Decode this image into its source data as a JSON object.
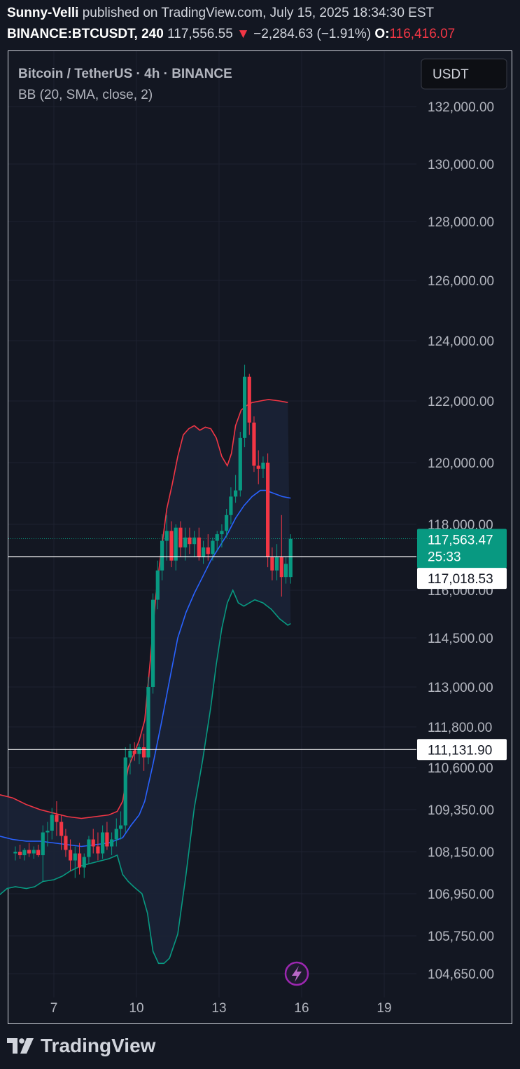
{
  "header": {
    "line1_author": "Sunny-Velli",
    "line1_rest": "published on TradingView.com, July 15, 2025 18:34:30 EST",
    "symbol": "BINANCE:BTCUSDT, 240",
    "last": "117,556.55",
    "arrow": "▼",
    "change": "−2,284.63 (−1.91%)",
    "o_label": "O:",
    "o_value": "116,416.07"
  },
  "legend": {
    "title": "Bitcoin / TetherUS · 4h · BINANCE",
    "indicator": "BB (20, SMA, close, 2)"
  },
  "currency_button": "USDT",
  "price_badge": {
    "price": "117,563.47",
    "countdown": "25:33"
  },
  "line_labels": {
    "upper": "117,018.53",
    "lower": "111,131.90"
  },
  "brand": "TradingView",
  "colors": {
    "background": "#131722",
    "up": "#089981",
    "down": "#f23645",
    "bb_upper": "#f23645",
    "bb_basis": "#2962ff",
    "bb_lower": "#089981",
    "bb_fill": "#1b2236",
    "badge": "#089981"
  },
  "chart_data": {
    "type": "candlestick",
    "title": "Bitcoin / TetherUS · 4h · BINANCE",
    "indicator": "BB (20, SMA, close, 2)",
    "currency": "USDT",
    "y_ticks": [
      "132,000.00",
      "130,000.00",
      "128,000.00",
      "126,000.00",
      "124,000.00",
      "122,000.00",
      "120,000.00",
      "118,000.00",
      "116,000.00",
      "114,500.00",
      "113,000.00",
      "111,800.00",
      "110,600.00",
      "109,350.00",
      "108,150.00",
      "106,950.00",
      "105,750.00",
      "104,650.00"
    ],
    "y_tick_values": [
      132000,
      130000,
      128000,
      126000,
      124000,
      122000,
      120000,
      118000,
      116000,
      114500,
      113000,
      111800,
      110600,
      109350,
      108150,
      106950,
      105750,
      104650
    ],
    "x_ticks": [
      {
        "label": "7",
        "day": 7
      },
      {
        "label": "10",
        "day": 10
      },
      {
        "label": "13",
        "day": 13
      },
      {
        "label": "16",
        "day": 16
      },
      {
        "label": "19",
        "day": 19
      }
    ],
    "candles": [
      {
        "t": 5.6,
        "o": 108100,
        "h": 108300,
        "l": 107900,
        "c": 108150
      },
      {
        "t": 5.77,
        "o": 108150,
        "h": 108350,
        "l": 107950,
        "c": 108050
      },
      {
        "t": 5.93,
        "o": 108050,
        "h": 108250,
        "l": 107900,
        "c": 108200
      },
      {
        "t": 6.1,
        "o": 108200,
        "h": 108400,
        "l": 108000,
        "c": 108100
      },
      {
        "t": 6.27,
        "o": 108100,
        "h": 108300,
        "l": 107950,
        "c": 108200
      },
      {
        "t": 6.43,
        "o": 108200,
        "h": 108350,
        "l": 108000,
        "c": 108050
      },
      {
        "t": 6.6,
        "o": 108050,
        "h": 108900,
        "l": 107300,
        "c": 108700
      },
      {
        "t": 6.77,
        "o": 108700,
        "h": 109000,
        "l": 108300,
        "c": 108750
      },
      {
        "t": 6.93,
        "o": 108750,
        "h": 109400,
        "l": 108500,
        "c": 109200
      },
      {
        "t": 7.1,
        "o": 109200,
        "h": 109600,
        "l": 108600,
        "c": 109000
      },
      {
        "t": 7.27,
        "o": 109000,
        "h": 109200,
        "l": 108200,
        "c": 108600
      },
      {
        "t": 7.43,
        "o": 108600,
        "h": 108800,
        "l": 108000,
        "c": 108200
      },
      {
        "t": 7.6,
        "o": 108200,
        "h": 108500,
        "l": 107600,
        "c": 107900
      },
      {
        "t": 7.77,
        "o": 107900,
        "h": 108300,
        "l": 107400,
        "c": 108100
      },
      {
        "t": 7.93,
        "o": 108100,
        "h": 108400,
        "l": 107500,
        "c": 107700
      },
      {
        "t": 8.1,
        "o": 107700,
        "h": 108100,
        "l": 107400,
        "c": 108000
      },
      {
        "t": 8.27,
        "o": 108000,
        "h": 108600,
        "l": 107800,
        "c": 108500
      },
      {
        "t": 8.43,
        "o": 108500,
        "h": 108800,
        "l": 108100,
        "c": 108300
      },
      {
        "t": 8.6,
        "o": 108300,
        "h": 108700,
        "l": 107900,
        "c": 108100
      },
      {
        "t": 8.77,
        "o": 108100,
        "h": 108900,
        "l": 107950,
        "c": 108700
      },
      {
        "t": 8.93,
        "o": 108700,
        "h": 109000,
        "l": 108200,
        "c": 108300
      },
      {
        "t": 9.1,
        "o": 108300,
        "h": 108700,
        "l": 108050,
        "c": 108500
      },
      {
        "t": 9.27,
        "o": 108500,
        "h": 109100,
        "l": 108300,
        "c": 108800
      },
      {
        "t": 9.43,
        "o": 108800,
        "h": 109300,
        "l": 108500,
        "c": 108900
      },
      {
        "t": 9.6,
        "o": 108900,
        "h": 111200,
        "l": 108700,
        "c": 110900
      },
      {
        "t": 9.77,
        "o": 110900,
        "h": 111300,
        "l": 110400,
        "c": 111100
      },
      {
        "t": 9.93,
        "o": 111100,
        "h": 111350,
        "l": 110800,
        "c": 111000
      },
      {
        "t": 10.1,
        "o": 111000,
        "h": 111300,
        "l": 110700,
        "c": 111200
      },
      {
        "t": 10.27,
        "o": 111200,
        "h": 111600,
        "l": 110500,
        "c": 110900
      },
      {
        "t": 10.43,
        "o": 110900,
        "h": 113300,
        "l": 110700,
        "c": 113000
      },
      {
        "t": 10.6,
        "o": 113000,
        "h": 115900,
        "l": 112800,
        "c": 115700
      },
      {
        "t": 10.77,
        "o": 115700,
        "h": 116900,
        "l": 115400,
        "c": 116600
      },
      {
        "t": 10.93,
        "o": 116600,
        "h": 117700,
        "l": 116300,
        "c": 117500
      },
      {
        "t": 11.1,
        "o": 117500,
        "h": 118300,
        "l": 116900,
        "c": 117800
      },
      {
        "t": 11.27,
        "o": 117800,
        "h": 118100,
        "l": 116700,
        "c": 116900
      },
      {
        "t": 11.43,
        "o": 116900,
        "h": 118000,
        "l": 116600,
        "c": 117900
      },
      {
        "t": 11.6,
        "o": 117900,
        "h": 118100,
        "l": 117000,
        "c": 117300
      },
      {
        "t": 11.77,
        "o": 117300,
        "h": 117900,
        "l": 116900,
        "c": 117600
      },
      {
        "t": 11.93,
        "o": 117600,
        "h": 117900,
        "l": 117100,
        "c": 117400
      },
      {
        "t": 12.1,
        "o": 117400,
        "h": 117800,
        "l": 117000,
        "c": 117600
      },
      {
        "t": 12.27,
        "o": 117600,
        "h": 117900,
        "l": 116900,
        "c": 117000
      },
      {
        "t": 12.43,
        "o": 117000,
        "h": 117500,
        "l": 116800,
        "c": 117300
      },
      {
        "t": 12.6,
        "o": 117300,
        "h": 117700,
        "l": 116900,
        "c": 117100
      },
      {
        "t": 12.77,
        "o": 117100,
        "h": 117600,
        "l": 116900,
        "c": 117500
      },
      {
        "t": 12.93,
        "o": 117500,
        "h": 117800,
        "l": 117200,
        "c": 117700
      },
      {
        "t": 13.1,
        "o": 117700,
        "h": 118000,
        "l": 117300,
        "c": 117800
      },
      {
        "t": 13.27,
        "o": 117800,
        "h": 118500,
        "l": 117600,
        "c": 118300
      },
      {
        "t": 13.43,
        "o": 118300,
        "h": 119200,
        "l": 118000,
        "c": 118900
      },
      {
        "t": 13.6,
        "o": 118900,
        "h": 119600,
        "l": 118700,
        "c": 119100
      },
      {
        "t": 13.77,
        "o": 119100,
        "h": 121000,
        "l": 118900,
        "c": 120800
      },
      {
        "t": 13.93,
        "o": 120800,
        "h": 123200,
        "l": 120500,
        "c": 122800
      },
      {
        "t": 14.1,
        "o": 122800,
        "h": 122900,
        "l": 120900,
        "c": 121300
      },
      {
        "t": 14.27,
        "o": 121300,
        "h": 121500,
        "l": 119700,
        "c": 119900
      },
      {
        "t": 14.43,
        "o": 119900,
        "h": 120400,
        "l": 119300,
        "c": 119800
      },
      {
        "t": 14.6,
        "o": 119800,
        "h": 120200,
        "l": 119500,
        "c": 120000
      },
      {
        "t": 14.77,
        "o": 120000,
        "h": 120300,
        "l": 116700,
        "c": 117000
      },
      {
        "t": 14.93,
        "o": 117000,
        "h": 117300,
        "l": 116300,
        "c": 116600
      },
      {
        "t": 15.1,
        "o": 116600,
        "h": 117400,
        "l": 116300,
        "c": 117000
      },
      {
        "t": 15.27,
        "o": 117000,
        "h": 118300,
        "l": 115800,
        "c": 116400
      },
      {
        "t": 15.43,
        "o": 116400,
        "h": 117000,
        "l": 116200,
        "c": 116800
      },
      {
        "t": 15.6,
        "o": 116400,
        "h": 117700,
        "l": 116200,
        "c": 117560
      }
    ],
    "bb_upper": [
      [
        5.0,
        109800
      ],
      [
        5.5,
        109700
      ],
      [
        6.0,
        109500
      ],
      [
        6.5,
        109350
      ],
      [
        7.0,
        109250
      ],
      [
        7.5,
        109150
      ],
      [
        8.0,
        109100
      ],
      [
        8.5,
        109150
      ],
      [
        9.0,
        109200
      ],
      [
        9.3,
        109300
      ],
      [
        9.5,
        109600
      ],
      [
        9.7,
        110600
      ],
      [
        9.9,
        111000
      ],
      [
        10.1,
        111400
      ],
      [
        10.3,
        112000
      ],
      [
        10.5,
        113800
      ],
      [
        10.7,
        115800
      ],
      [
        10.9,
        117200
      ],
      [
        11.1,
        118500
      ],
      [
        11.3,
        119300
      ],
      [
        11.5,
        120200
      ],
      [
        11.7,
        120900
      ],
      [
        11.9,
        121100
      ],
      [
        12.1,
        121200
      ],
      [
        12.3,
        121050
      ],
      [
        12.5,
        121150
      ],
      [
        12.7,
        121100
      ],
      [
        12.9,
        120800
      ],
      [
        13.1,
        120200
      ],
      [
        13.3,
        119900
      ],
      [
        13.45,
        120300
      ],
      [
        13.6,
        121200
      ],
      [
        13.8,
        121700
      ],
      [
        14.0,
        121850
      ],
      [
        14.2,
        121950
      ],
      [
        14.5,
        122000
      ],
      [
        14.8,
        122050
      ],
      [
        15.2,
        122000
      ],
      [
        15.5,
        121950
      ]
    ],
    "bb_basis": [
      [
        5.0,
        108600
      ],
      [
        5.5,
        108500
      ],
      [
        6.0,
        108450
      ],
      [
        6.5,
        108450
      ],
      [
        7.0,
        108400
      ],
      [
        7.5,
        108350
      ],
      [
        8.0,
        108300
      ],
      [
        8.5,
        108350
      ],
      [
        9.0,
        108400
      ],
      [
        9.5,
        108550
      ],
      [
        9.8,
        108900
      ],
      [
        10.1,
        109200
      ],
      [
        10.3,
        109600
      ],
      [
        10.6,
        110700
      ],
      [
        10.9,
        111900
      ],
      [
        11.2,
        113200
      ],
      [
        11.5,
        114500
      ],
      [
        11.8,
        115300
      ],
      [
        12.1,
        115900
      ],
      [
        12.4,
        116400
      ],
      [
        12.7,
        116900
      ],
      [
        13.0,
        117300
      ],
      [
        13.3,
        117700
      ],
      [
        13.6,
        118200
      ],
      [
        13.9,
        118600
      ],
      [
        14.2,
        118900
      ],
      [
        14.5,
        119100
      ],
      [
        14.7,
        119100
      ],
      [
        15.0,
        119000
      ],
      [
        15.3,
        118900
      ],
      [
        15.6,
        118850
      ]
    ],
    "bb_lower": [
      [
        5.0,
        106900
      ],
      [
        5.3,
        107100
      ],
      [
        5.6,
        107150
      ],
      [
        6.0,
        107100
      ],
      [
        6.3,
        107150
      ],
      [
        6.6,
        107300
      ],
      [
        7.0,
        107350
      ],
      [
        7.3,
        107450
      ],
      [
        7.6,
        107600
      ],
      [
        8.0,
        107750
      ],
      [
        8.5,
        107850
      ],
      [
        9.0,
        107950
      ],
      [
        9.3,
        108050
      ],
      [
        9.5,
        107500
      ],
      [
        9.7,
        107300
      ],
      [
        9.9,
        107150
      ],
      [
        10.2,
        106950
      ],
      [
        10.4,
        106400
      ],
      [
        10.6,
        105300
      ],
      [
        10.8,
        104950
      ],
      [
        11.0,
        104950
      ],
      [
        11.2,
        105100
      ],
      [
        11.5,
        105800
      ],
      [
        11.8,
        107500
      ],
      [
        12.1,
        109400
      ],
      [
        12.4,
        110800
      ],
      [
        12.7,
        112400
      ],
      [
        12.9,
        113700
      ],
      [
        13.1,
        114800
      ],
      [
        13.3,
        115600
      ],
      [
        13.5,
        116000
      ],
      [
        13.7,
        115600
      ],
      [
        13.9,
        115500
      ],
      [
        14.1,
        115600
      ],
      [
        14.3,
        115700
      ],
      [
        14.6,
        115600
      ],
      [
        14.9,
        115400
      ],
      [
        15.2,
        115100
      ],
      [
        15.5,
        114900
      ],
      [
        15.6,
        114950
      ]
    ],
    "current_price": 117563.47,
    "price_lines": [
      117018.53,
      111131.9
    ]
  }
}
